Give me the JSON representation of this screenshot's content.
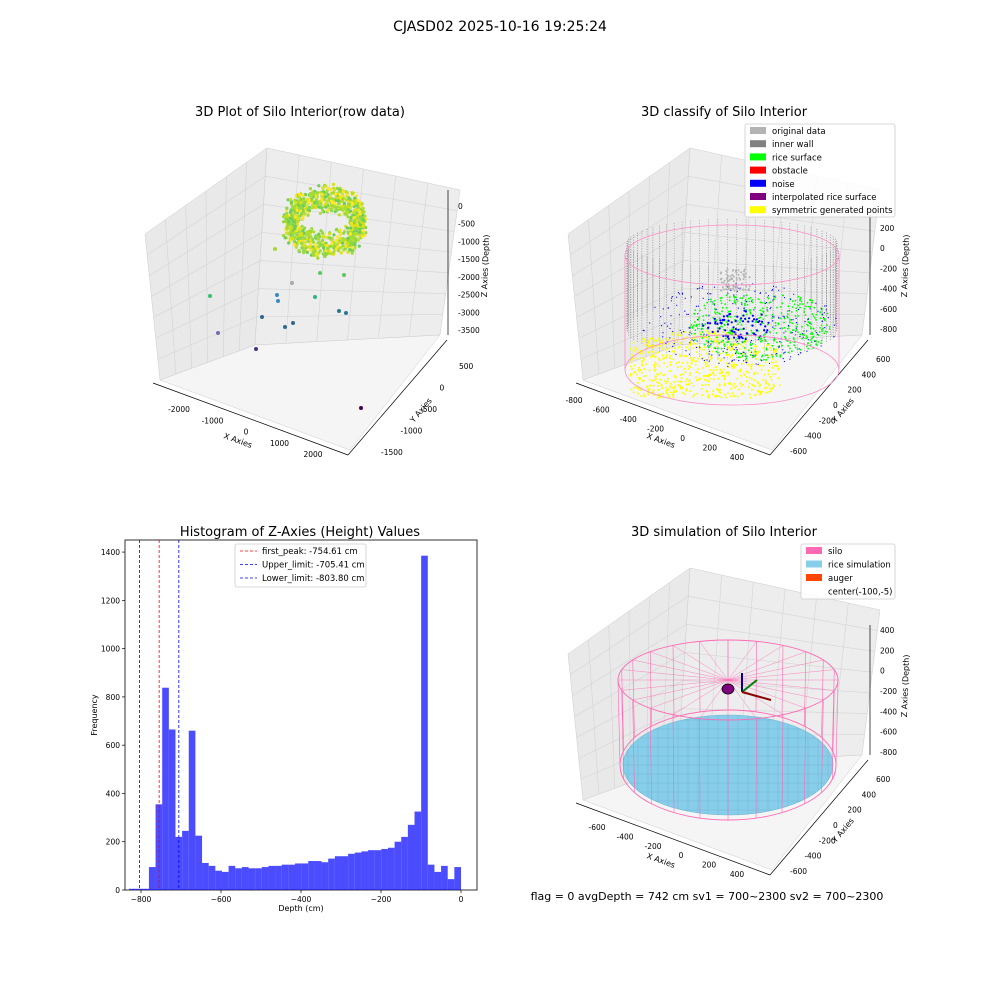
{
  "suptitle": "CJASD02 2025-10-16 19:25:24",
  "footer": "flag = 0     avgDepth = 742 cm  sv1 = 700~2300  sv2 = 700~2300",
  "chart_data": [
    {
      "type": "scatter3d",
      "title": "3D Plot of Silo Interior(row data)",
      "xlabel": "X Axies",
      "ylabel": "Y Axies",
      "zlabel": "Z Axies (Depth)",
      "xticks": [
        "-2000",
        "-1000",
        "0",
        "1000",
        "2000"
      ],
      "yticks": [
        "500",
        "0",
        "-500",
        "-1000",
        "-1500"
      ],
      "zticks": [
        "0",
        "-500",
        "-1000",
        "-1500",
        "-2000",
        "-2500",
        "-3000",
        "-3500"
      ],
      "colormap": "viridis",
      "outlier_point_count": 16
    },
    {
      "type": "scatter3d",
      "title": "3D classify of Silo Interior",
      "xlabel": "X Axies",
      "ylabel": "Y Axies",
      "zlabel": "Z Axies (Depth)",
      "xticks": [
        "-800",
        "-600",
        "-400",
        "-200",
        "0",
        "200",
        "400"
      ],
      "yticks": [
        "600",
        "400",
        "200",
        "0",
        "-200",
        "-400",
        "-600"
      ],
      "zticks": [
        "200",
        "0",
        "-200",
        "-400",
        "-600",
        "-800"
      ],
      "legend": [
        {
          "label": "original data",
          "color": "#b3b3b3"
        },
        {
          "label": "inner wall",
          "color": "#808080"
        },
        {
          "label": "rice surface",
          "color": "#00ff00"
        },
        {
          "label": "obstacle",
          "color": "#ff0000"
        },
        {
          "label": "noise",
          "color": "#0000ff"
        },
        {
          "label": "interpolated rice surface",
          "color": "#800080"
        },
        {
          "label": "symmetric generated points",
          "color": "#ffff00"
        }
      ],
      "legend_position": "top-right"
    },
    {
      "type": "bar",
      "title": "Histogram of Z-Axies (Height) Values",
      "xlabel": "Depth (cm)",
      "ylabel": "Frequency",
      "xlim": [
        -840,
        40
      ],
      "ylim": [
        0,
        1450
      ],
      "xticks": [
        -800,
        -600,
        -400,
        -200,
        0
      ],
      "yticks": [
        0,
        200,
        400,
        600,
        800,
        1000,
        1200,
        1400
      ],
      "bar_color": "#0000ff",
      "bin_width": 16.6,
      "bin_starts": [
        -830,
        -813.4,
        -796.8,
        -780.2,
        -763.6,
        -747,
        -730.4,
        -713.8,
        -697.2,
        -680.6,
        -664,
        -647.4,
        -630.8,
        -614.2,
        -597.6,
        -581,
        -564.4,
        -547.8,
        -531.2,
        -514.6,
        -498,
        -481.4,
        -464.8,
        -448.2,
        -431.6,
        -415,
        -398.4,
        -381.8,
        -365.2,
        -348.6,
        -332,
        -315.4,
        -298.8,
        -282.2,
        -265.6,
        -249,
        -232.4,
        -215.8,
        -199.2,
        -182.6,
        -166,
        -149.4,
        -132.8,
        -116.2,
        -99.6,
        -83,
        -66.4,
        -49.8,
        -33.2,
        -16.6
      ],
      "values": [
        5,
        5,
        5,
        95,
        355,
        838,
        665,
        220,
        245,
        660,
        225,
        112,
        100,
        80,
        75,
        100,
        90,
        95,
        90,
        90,
        95,
        100,
        100,
        105,
        105,
        110,
        110,
        120,
        120,
        115,
        130,
        140,
        140,
        150,
        155,
        160,
        165,
        165,
        170,
        175,
        200,
        220,
        270,
        325,
        1385,
        105,
        75,
        100,
        45,
        95
      ],
      "vlines": [
        {
          "label": "first_peak: -754.61 cm",
          "x": -754.61,
          "color": "#ff0000"
        },
        {
          "label": "Upper_limit: -705.41 cm",
          "x": -705.41,
          "color": "#0000ff"
        },
        {
          "label": "Lower_limit: -803.80 cm",
          "x": -803.8,
          "color": "#0000ff"
        }
      ],
      "legend_position": "top-center"
    },
    {
      "type": "surface3d",
      "title": "3D simulation of Silo Interior",
      "xlabel": "X Axies",
      "ylabel": "Y Axies",
      "zlabel": "Z Axies (Depth)",
      "xticks": [
        "-600",
        "-400",
        "-200",
        "0",
        "200",
        "400"
      ],
      "yticks": [
        "600",
        "400",
        "200",
        "0",
        "-200",
        "-400",
        "-600"
      ],
      "zticks": [
        "400",
        "200",
        "0",
        "-200",
        "-400",
        "-600",
        "-800"
      ],
      "legend": [
        {
          "label": "silo",
          "color": "#ff69b4"
        },
        {
          "label": "rice simulation",
          "color": "#87ceeb"
        },
        {
          "label": "auger",
          "color": "#ff4500"
        },
        {
          "label": "center(-100,-5)",
          "color": ""
        }
      ],
      "legend_position": "top-right"
    }
  ]
}
